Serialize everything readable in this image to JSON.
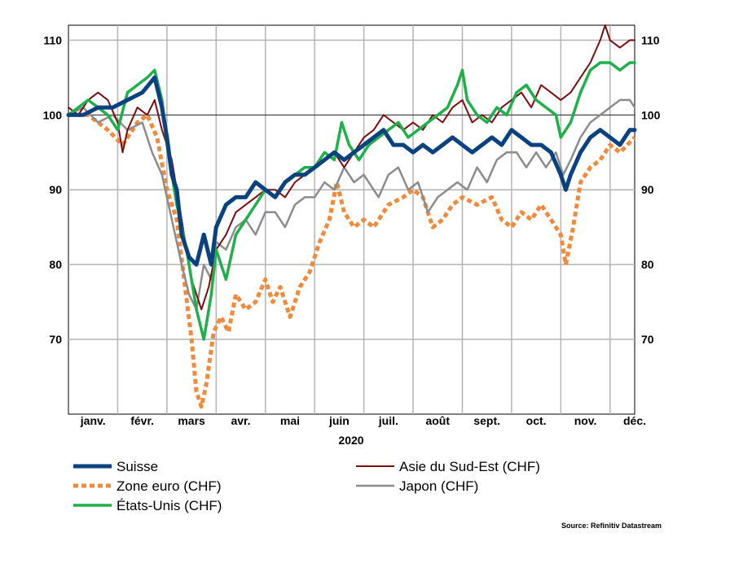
{
  "chart_data": {
    "type": "line",
    "title": "",
    "xlabel": "2020",
    "ylabel": "",
    "ylim": [
      60,
      112
    ],
    "xlim": [
      0,
      11.5
    ],
    "yticks": [
      70,
      80,
      90,
      100,
      110
    ],
    "reference_line": 100,
    "grid": true,
    "legend_position": "bottom",
    "months": [
      "janv.",
      "févr.",
      "mars",
      "avr.",
      "mai",
      "juin",
      "juil.",
      "août",
      "sept.",
      "oct.",
      "nov.",
      "déc."
    ],
    "source": "Source: Refinitiv Datastream",
    "series": [
      {
        "name": "Zone euro (CHF)",
        "color": "#f08a3c",
        "dash": true,
        "width": 5,
        "points": [
          [
            0,
            100
          ],
          [
            0.4,
            100
          ],
          [
            0.8,
            98
          ],
          [
            1.1,
            96
          ],
          [
            1.4,
            99
          ],
          [
            1.6,
            100
          ],
          [
            1.8,
            97
          ],
          [
            2.0,
            90
          ],
          [
            2.2,
            86
          ],
          [
            2.35,
            78
          ],
          [
            2.5,
            70
          ],
          [
            2.6,
            63
          ],
          [
            2.7,
            61
          ],
          [
            2.8,
            64
          ],
          [
            2.95,
            71
          ],
          [
            3.1,
            73
          ],
          [
            3.25,
            71
          ],
          [
            3.4,
            76
          ],
          [
            3.6,
            74
          ],
          [
            3.8,
            75
          ],
          [
            4.0,
            78
          ],
          [
            4.15,
            75
          ],
          [
            4.3,
            77
          ],
          [
            4.5,
            73
          ],
          [
            4.7,
            77
          ],
          [
            4.9,
            79
          ],
          [
            5.1,
            83
          ],
          [
            5.3,
            86
          ],
          [
            5.45,
            91
          ],
          [
            5.6,
            87
          ],
          [
            5.8,
            85
          ],
          [
            6.0,
            86
          ],
          [
            6.2,
            85
          ],
          [
            6.5,
            88
          ],
          [
            6.8,
            89
          ],
          [
            7.0,
            90
          ],
          [
            7.2,
            89
          ],
          [
            7.4,
            85
          ],
          [
            7.6,
            86
          ],
          [
            7.8,
            88
          ],
          [
            8.0,
            89
          ],
          [
            8.3,
            88
          ],
          [
            8.6,
            89
          ],
          [
            8.8,
            86
          ],
          [
            9.0,
            85
          ],
          [
            9.2,
            87
          ],
          [
            9.4,
            86
          ],
          [
            9.6,
            88
          ],
          [
            9.8,
            86
          ],
          [
            10.0,
            84
          ],
          [
            10.1,
            80
          ],
          [
            10.25,
            85
          ],
          [
            10.4,
            91
          ],
          [
            10.6,
            93
          ],
          [
            10.8,
            94
          ],
          [
            11.0,
            96
          ],
          [
            11.2,
            95
          ],
          [
            11.35,
            96
          ],
          [
            11.5,
            97
          ]
        ]
      },
      {
        "name": "Japon (CHF)",
        "color": "#8c8c8c",
        "dash": false,
        "width": 2.5,
        "points": [
          [
            0,
            100
          ],
          [
            0.3,
            101
          ],
          [
            0.6,
            99
          ],
          [
            0.9,
            100
          ],
          [
            1.2,
            98
          ],
          [
            1.5,
            99
          ],
          [
            1.7,
            95
          ],
          [
            1.9,
            92
          ],
          [
            2.1,
            86
          ],
          [
            2.3,
            80
          ],
          [
            2.45,
            76
          ],
          [
            2.6,
            74
          ],
          [
            2.75,
            80
          ],
          [
            2.9,
            78
          ],
          [
            3.0,
            83
          ],
          [
            3.2,
            82
          ],
          [
            3.4,
            85
          ],
          [
            3.6,
            86
          ],
          [
            3.8,
            84
          ],
          [
            4.0,
            87
          ],
          [
            4.2,
            87
          ],
          [
            4.4,
            85
          ],
          [
            4.6,
            88
          ],
          [
            4.8,
            89
          ],
          [
            5.0,
            89
          ],
          [
            5.2,
            91
          ],
          [
            5.4,
            90
          ],
          [
            5.6,
            93
          ],
          [
            5.8,
            91
          ],
          [
            6.0,
            92
          ],
          [
            6.3,
            89
          ],
          [
            6.5,
            92
          ],
          [
            6.7,
            93
          ],
          [
            6.9,
            90
          ],
          [
            7.1,
            91
          ],
          [
            7.3,
            87
          ],
          [
            7.5,
            89
          ],
          [
            7.7,
            90
          ],
          [
            7.9,
            91
          ],
          [
            8.1,
            90
          ],
          [
            8.3,
            93
          ],
          [
            8.5,
            91
          ],
          [
            8.7,
            94
          ],
          [
            8.9,
            95
          ],
          [
            9.1,
            95
          ],
          [
            9.3,
            93
          ],
          [
            9.5,
            95
          ],
          [
            9.7,
            93
          ],
          [
            9.9,
            95
          ],
          [
            10.05,
            92
          ],
          [
            10.2,
            94
          ],
          [
            10.4,
            97
          ],
          [
            10.6,
            99
          ],
          [
            10.8,
            100
          ],
          [
            11.0,
            101
          ],
          [
            11.2,
            102
          ],
          [
            11.4,
            102
          ],
          [
            11.5,
            101
          ]
        ]
      },
      {
        "name": "Asie du Sud-Est (CHF)",
        "color": "#7a0e0e",
        "dash": false,
        "width": 2,
        "points": [
          [
            0,
            101
          ],
          [
            0.2,
            100
          ],
          [
            0.4,
            102
          ],
          [
            0.6,
            103
          ],
          [
            0.8,
            102
          ],
          [
            1.0,
            99
          ],
          [
            1.1,
            95
          ],
          [
            1.2,
            98
          ],
          [
            1.4,
            101
          ],
          [
            1.6,
            100
          ],
          [
            1.75,
            102
          ],
          [
            1.9,
            98
          ],
          [
            2.1,
            94
          ],
          [
            2.3,
            86
          ],
          [
            2.5,
            78
          ],
          [
            2.7,
            74
          ],
          [
            2.85,
            77
          ],
          [
            3.0,
            82
          ],
          [
            3.2,
            84
          ],
          [
            3.4,
            87
          ],
          [
            3.6,
            88
          ],
          [
            3.8,
            89
          ],
          [
            4.0,
            90
          ],
          [
            4.2,
            90
          ],
          [
            4.4,
            89
          ],
          [
            4.6,
            91
          ],
          [
            4.8,
            92
          ],
          [
            5.0,
            93
          ],
          [
            5.2,
            94
          ],
          [
            5.4,
            95
          ],
          [
            5.6,
            93
          ],
          [
            5.8,
            95
          ],
          [
            6.0,
            97
          ],
          [
            6.2,
            98
          ],
          [
            6.4,
            100
          ],
          [
            6.6,
            99
          ],
          [
            6.8,
            98
          ],
          [
            7.0,
            99
          ],
          [
            7.2,
            98
          ],
          [
            7.4,
            100
          ],
          [
            7.6,
            99
          ],
          [
            7.8,
            101
          ],
          [
            8.0,
            102
          ],
          [
            8.2,
            99
          ],
          [
            8.4,
            100
          ],
          [
            8.6,
            99
          ],
          [
            8.8,
            101
          ],
          [
            9.0,
            102
          ],
          [
            9.2,
            103
          ],
          [
            9.4,
            101
          ],
          [
            9.6,
            104
          ],
          [
            9.8,
            103
          ],
          [
            10.0,
            102
          ],
          [
            10.2,
            103
          ],
          [
            10.4,
            105
          ],
          [
            10.6,
            107
          ],
          [
            10.8,
            110
          ],
          [
            10.9,
            112
          ],
          [
            11.0,
            110
          ],
          [
            11.2,
            109
          ],
          [
            11.4,
            110
          ],
          [
            11.5,
            110
          ]
        ]
      },
      {
        "name": "États-Unis (CHF)",
        "color": "#1fb04b",
        "dash": false,
        "width": 3.5,
        "points": [
          [
            0,
            100
          ],
          [
            0.2,
            101
          ],
          [
            0.4,
            102
          ],
          [
            0.6,
            101
          ],
          [
            0.8,
            100
          ],
          [
            1.0,
            98
          ],
          [
            1.2,
            103
          ],
          [
            1.4,
            104
          ],
          [
            1.6,
            105
          ],
          [
            1.75,
            106
          ],
          [
            1.9,
            102
          ],
          [
            2.0,
            96
          ],
          [
            2.2,
            88
          ],
          [
            2.4,
            82
          ],
          [
            2.6,
            74
          ],
          [
            2.75,
            70
          ],
          [
            2.9,
            76
          ],
          [
            3.0,
            82
          ],
          [
            3.2,
            78
          ],
          [
            3.4,
            84
          ],
          [
            3.6,
            86
          ],
          [
            3.8,
            88
          ],
          [
            4.0,
            90
          ],
          [
            4.2,
            89
          ],
          [
            4.4,
            91
          ],
          [
            4.6,
            92
          ],
          [
            4.8,
            93
          ],
          [
            5.0,
            93
          ],
          [
            5.2,
            95
          ],
          [
            5.4,
            94
          ],
          [
            5.55,
            99
          ],
          [
            5.7,
            96
          ],
          [
            5.9,
            94
          ],
          [
            6.1,
            96
          ],
          [
            6.3,
            97
          ],
          [
            6.5,
            98
          ],
          [
            6.7,
            99
          ],
          [
            6.9,
            97
          ],
          [
            7.1,
            98
          ],
          [
            7.3,
            99
          ],
          [
            7.5,
            100
          ],
          [
            7.7,
            101
          ],
          [
            7.9,
            104
          ],
          [
            8.0,
            106
          ],
          [
            8.1,
            102
          ],
          [
            8.3,
            100
          ],
          [
            8.5,
            99
          ],
          [
            8.7,
            101
          ],
          [
            8.9,
            100
          ],
          [
            9.1,
            103
          ],
          [
            9.3,
            104
          ],
          [
            9.5,
            102
          ],
          [
            9.7,
            101
          ],
          [
            9.9,
            100
          ],
          [
            10.0,
            97
          ],
          [
            10.2,
            99
          ],
          [
            10.4,
            103
          ],
          [
            10.6,
            106
          ],
          [
            10.8,
            107
          ],
          [
            11.0,
            107
          ],
          [
            11.2,
            106
          ],
          [
            11.4,
            107
          ],
          [
            11.5,
            107
          ]
        ]
      },
      {
        "name": "Suisse",
        "color": "#0a4280",
        "dash": false,
        "width": 5,
        "points": [
          [
            0,
            100
          ],
          [
            0.3,
            100
          ],
          [
            0.6,
            101
          ],
          [
            0.9,
            101
          ],
          [
            1.2,
            102
          ],
          [
            1.5,
            103
          ],
          [
            1.75,
            105
          ],
          [
            1.9,
            101
          ],
          [
            2.0,
            97
          ],
          [
            2.1,
            92
          ],
          [
            2.2,
            90
          ],
          [
            2.3,
            84
          ],
          [
            2.45,
            81
          ],
          [
            2.6,
            80
          ],
          [
            2.75,
            84
          ],
          [
            2.9,
            80
          ],
          [
            3.0,
            85
          ],
          [
            3.2,
            88
          ],
          [
            3.4,
            89
          ],
          [
            3.6,
            89
          ],
          [
            3.8,
            91
          ],
          [
            4.0,
            90
          ],
          [
            4.2,
            89
          ],
          [
            4.4,
            91
          ],
          [
            4.6,
            92
          ],
          [
            4.8,
            92
          ],
          [
            5.0,
            93
          ],
          [
            5.2,
            94
          ],
          [
            5.4,
            95
          ],
          [
            5.6,
            94
          ],
          [
            5.8,
            95
          ],
          [
            6.0,
            96
          ],
          [
            6.2,
            97
          ],
          [
            6.4,
            98
          ],
          [
            6.6,
            96
          ],
          [
            6.8,
            96
          ],
          [
            7.0,
            95
          ],
          [
            7.2,
            96
          ],
          [
            7.4,
            95
          ],
          [
            7.6,
            96
          ],
          [
            7.8,
            97
          ],
          [
            8.0,
            96
          ],
          [
            8.2,
            95
          ],
          [
            8.4,
            96
          ],
          [
            8.6,
            97
          ],
          [
            8.8,
            96
          ],
          [
            9.0,
            98
          ],
          [
            9.2,
            97
          ],
          [
            9.4,
            96
          ],
          [
            9.6,
            96
          ],
          [
            9.8,
            95
          ],
          [
            10.0,
            92
          ],
          [
            10.1,
            90
          ],
          [
            10.2,
            92
          ],
          [
            10.4,
            95
          ],
          [
            10.6,
            97
          ],
          [
            10.8,
            98
          ],
          [
            11.0,
            97
          ],
          [
            11.2,
            96
          ],
          [
            11.4,
            98
          ],
          [
            11.5,
            98
          ]
        ]
      }
    ],
    "legend_order": [
      4,
      0,
      3,
      2,
      1
    ]
  }
}
